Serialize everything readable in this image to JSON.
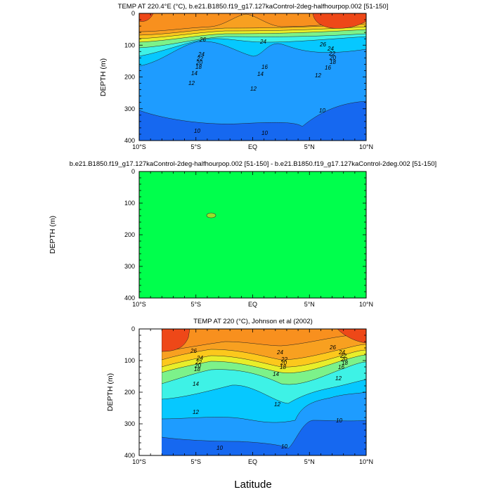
{
  "chart_data": [
    {
      "type": "contour",
      "title": "TEMP AT 220.4°E (°C), b.e21.B1850.f19_g17.127kaControl-2deg-halfhourpop.002 [51-150]",
      "ylabel": "DEPTH (m)",
      "xlabel": "",
      "xlim": [
        -10,
        10
      ],
      "ylim": [
        400,
        0
      ],
      "x_ticks": [
        "10°S",
        "5°S",
        "EQ",
        "5°N",
        "10°N"
      ],
      "y_ticks": [
        "0",
        "100",
        "200",
        "300",
        "400"
      ],
      "contour_labels": [
        "26",
        "24",
        "26",
        "24",
        "22",
        "20",
        "18",
        "24",
        "22",
        "20",
        "18",
        "16",
        "14",
        "16",
        "14",
        "12",
        "12",
        "12",
        "10",
        "10",
        "10"
      ]
    },
    {
      "type": "contour",
      "title": "b.e21.B1850.f19_g17.127kaControl-2deg-halfhourpop.002 [51-150] - b.e21.B1850.f19_g17.127kaControl-2deg.002 [51-150]",
      "ylabel": "DEPTH (m)",
      "xlim": [
        -10,
        10
      ],
      "ylim": [
        400,
        0
      ],
      "x_ticks": [
        "10°S",
        "5°S",
        "EQ",
        "5°N",
        "10°N"
      ],
      "y_ticks": [
        "0",
        "100",
        "200",
        "300",
        "400"
      ],
      "contour_labels": []
    },
    {
      "type": "contour",
      "title": "TEMP AT 220 (°C), Johnson et al (2002)",
      "ylabel": "DEPTH (m)",
      "xlabel": "Latitude",
      "xlim": [
        -10,
        10
      ],
      "ylim": [
        400,
        0
      ],
      "x_ticks": [
        "10°S",
        "5°S",
        "EQ",
        "5°N",
        "10°N"
      ],
      "y_ticks": [
        "0",
        "100",
        "200",
        "300",
        "400"
      ],
      "contour_labels": [
        "26",
        "24",
        "22",
        "20",
        "18",
        "24",
        "22",
        "20",
        "18",
        "26",
        "24",
        "22",
        "20",
        "18",
        "16",
        "14",
        "14",
        "12",
        "12",
        "12",
        "10",
        "10",
        "10"
      ]
    }
  ],
  "colors": {
    "t10": "#1668f0",
    "t12": "#1e9cff",
    "t14": "#06c8ff",
    "t16": "#3ef2e6",
    "t18": "#7cf28a",
    "t20": "#e8ee2a",
    "t22": "#fcc81c",
    "t24": "#f8a020",
    "t26": "#f8901e",
    "t28": "#ee4818",
    "diff": "#00ff4c",
    "diff_blob": "#96e228"
  }
}
